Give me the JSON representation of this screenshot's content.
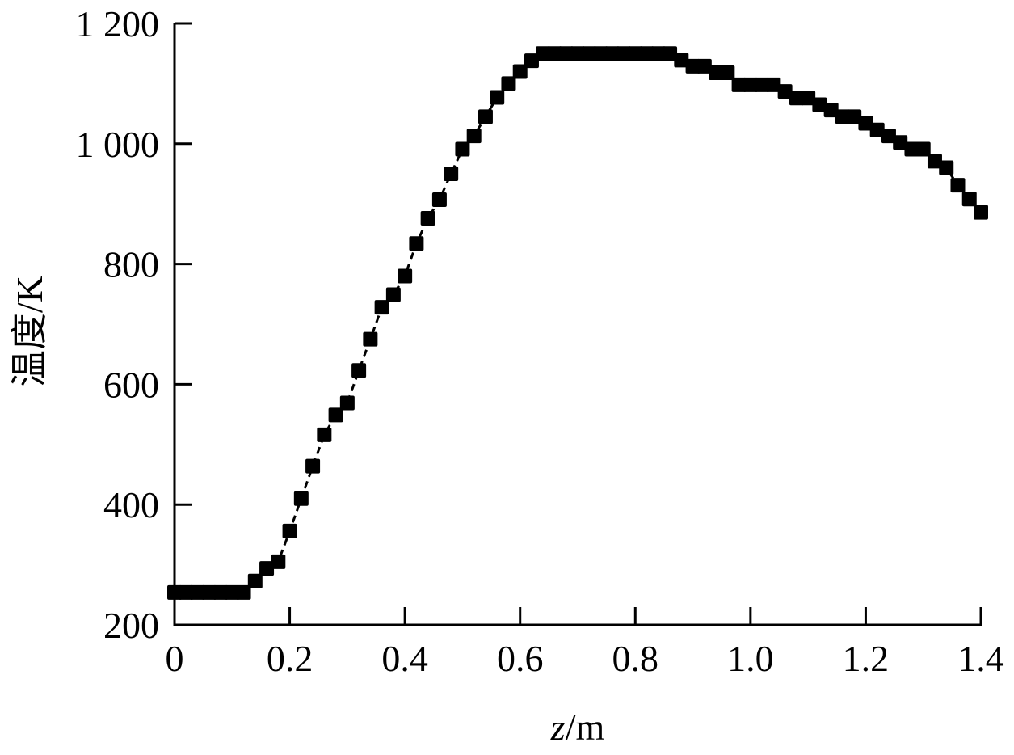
{
  "chart_data": {
    "type": "line",
    "title": "",
    "xlabel": "z/m",
    "xlabel_italic_part": "z",
    "xlabel_rest": "/m",
    "ylabel": "温度/K",
    "xlim": [
      0,
      1.4
    ],
    "ylim": [
      200,
      1200
    ],
    "xticks": [
      0,
      0.2,
      0.4,
      0.6,
      0.8,
      1.0,
      1.2,
      1.4
    ],
    "xtick_labels": [
      "0",
      "0.2",
      "0.4",
      "0.6",
      "0.8",
      "1.0",
      "1.2",
      "1.4"
    ],
    "yticks": [
      200,
      400,
      600,
      800,
      1000,
      1200
    ],
    "ytick_labels": [
      "200",
      "400",
      "600",
      "800",
      "1 000",
      "1 200"
    ],
    "grid": false,
    "legend": null,
    "marker": "square",
    "line_style": "dashed",
    "color": "#000000",
    "series": [
      {
        "name": "温度",
        "x": [
          0,
          0.02,
          0.04,
          0.06,
          0.08,
          0.1,
          0.12,
          0.14,
          0.16,
          0.18,
          0.2,
          0.22,
          0.24,
          0.26,
          0.28,
          0.3,
          0.32,
          0.34,
          0.36,
          0.38,
          0.4,
          0.42,
          0.44,
          0.46,
          0.48,
          0.5,
          0.52,
          0.54,
          0.56,
          0.58,
          0.6,
          0.62,
          0.64,
          0.66,
          0.68,
          0.7,
          0.72,
          0.74,
          0.76,
          0.78,
          0.8,
          0.82,
          0.84,
          0.86,
          0.88,
          0.9,
          0.92,
          0.94,
          0.96,
          0.98,
          1.0,
          1.02,
          1.04,
          1.06,
          1.08,
          1.1,
          1.12,
          1.14,
          1.16,
          1.18,
          1.2,
          1.22,
          1.24,
          1.26,
          1.28,
          1.3,
          1.32,
          1.34,
          1.36,
          1.38,
          1.4
        ],
        "y": [
          254,
          254,
          254,
          254,
          254,
          254,
          254,
          273,
          294,
          305,
          356,
          410,
          464,
          516,
          549,
          569,
          623,
          675,
          728,
          749,
          780,
          834,
          876,
          907,
          950,
          991,
          1013,
          1045,
          1077,
          1100,
          1120,
          1138,
          1150,
          1150,
          1150,
          1150,
          1150,
          1150,
          1150,
          1150,
          1150,
          1150,
          1150,
          1150,
          1139,
          1129,
          1129,
          1118,
          1118,
          1098,
          1098,
          1098,
          1098,
          1087,
          1076,
          1076,
          1065,
          1056,
          1045,
          1045,
          1034,
          1023,
          1013,
          1002,
          991,
          991,
          971,
          960,
          931,
          908,
          886
        ]
      }
    ]
  }
}
